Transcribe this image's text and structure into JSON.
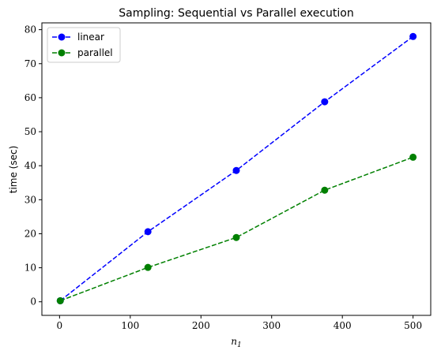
{
  "chart_data": {
    "type": "line",
    "title": "Sampling: Sequential vs Parallel execution",
    "xlabel": "n",
    "xlabel_subscript": "1",
    "ylabel": "time (sec)",
    "xlim": [
      -25,
      525
    ],
    "ylim": [
      -4,
      82
    ],
    "xticks": [
      0,
      100,
      200,
      300,
      400,
      500
    ],
    "yticks": [
      0,
      10,
      20,
      30,
      40,
      50,
      60,
      70,
      80
    ],
    "grid": false,
    "legend": "top-left",
    "series": [
      {
        "name": "linear",
        "color": "#0000ff",
        "linestyle": "dashed",
        "marker": "circle",
        "x": [
          1,
          125,
          250,
          375,
          500
        ],
        "y": [
          0.3,
          20.6,
          38.6,
          58.8,
          78.0
        ]
      },
      {
        "name": "parallel",
        "color": "#008000",
        "linestyle": "dashed",
        "marker": "circle",
        "x": [
          1,
          125,
          250,
          375,
          500
        ],
        "y": [
          0.3,
          10.1,
          18.9,
          32.8,
          42.5
        ]
      }
    ]
  }
}
